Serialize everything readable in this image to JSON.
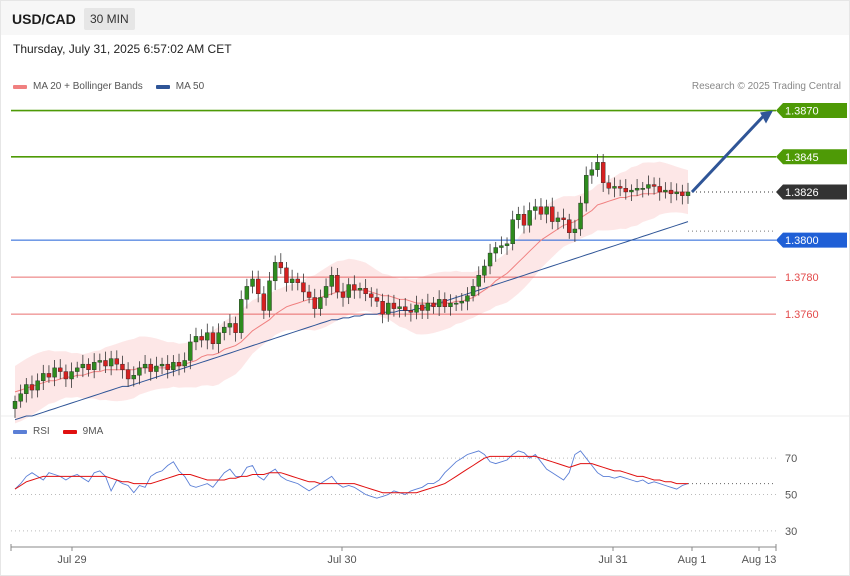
{
  "header": {
    "symbol": "USD/CAD",
    "timeframe": "30 MIN",
    "datetime": "Thursday, July 31, 2025 6:57:02 AM CET"
  },
  "legend": {
    "main": [
      {
        "label": "MA 20 + Bollinger Bands",
        "color": "#f08080"
      },
      {
        "label": "MA 50",
        "color": "#2f5597"
      }
    ],
    "rsi": [
      {
        "label": "RSI",
        "color": "#5b7fd6"
      },
      {
        "label": "9MA",
        "color": "#e01010"
      }
    ],
    "credit": "Research © 2025 Trading Central"
  },
  "chart_data": [
    {
      "type": "candlestick",
      "title": "USD/CAD",
      "timeframe": "30 MIN",
      "x_tick_labels": [
        "Jul 29",
        "Jul 30",
        "Jul 31",
        "Aug 1",
        "Aug 13"
      ],
      "levels": [
        {
          "value": 1.387,
          "label": "1.3870",
          "kind": "target",
          "color": "#4e9a06"
        },
        {
          "value": 1.3845,
          "label": "1.3845",
          "kind": "resistance",
          "color": "#4e9a06"
        },
        {
          "value": 1.3826,
          "label": "1.3826",
          "kind": "last-price",
          "color": "#333333"
        },
        {
          "value": 1.38,
          "label": "1.3800",
          "kind": "pivot",
          "color": "#1f5fd6"
        },
        {
          "value": 1.378,
          "label": "1.3780",
          "kind": "support",
          "color": "#e34b4b"
        },
        {
          "value": 1.376,
          "label": "1.3760",
          "kind": "support",
          "color": "#e34b4b"
        }
      ],
      "ylim": [
        1.3705,
        1.388
      ],
      "series_close": [
        1.3713,
        1.3717,
        1.3722,
        1.3719,
        1.3724,
        1.3728,
        1.3726,
        1.3731,
        1.3729,
        1.3725,
        1.3729,
        1.3731,
        1.3733,
        1.373,
        1.3734,
        1.3735,
        1.3732,
        1.3736,
        1.3733,
        1.373,
        1.3725,
        1.3727,
        1.3731,
        1.3733,
        1.3729,
        1.3732,
        1.3733,
        1.373,
        1.3734,
        1.3732,
        1.3735,
        1.3745,
        1.3748,
        1.3746,
        1.375,
        1.3744,
        1.375,
        1.3753,
        1.3755,
        1.375,
        1.3768,
        1.3775,
        1.3779,
        1.3771,
        1.3762,
        1.3778,
        1.3788,
        1.3785,
        1.3777,
        1.3779,
        1.3777,
        1.3772,
        1.3769,
        1.3763,
        1.3769,
        1.3775,
        1.3781,
        1.3772,
        1.3769,
        1.3776,
        1.3773,
        1.3774,
        1.3771,
        1.3769,
        1.3767,
        1.376,
        1.3766,
        1.3763,
        1.3764,
        1.3762,
        1.3761,
        1.3765,
        1.3762,
        1.3766,
        1.3764,
        1.3768,
        1.3764,
        1.3766,
        1.3766,
        1.3767,
        1.377,
        1.3775,
        1.3781,
        1.3786,
        1.3793,
        1.3796,
        1.3797,
        1.3798,
        1.3811,
        1.3814,
        1.3808,
        1.3816,
        1.3818,
        1.3814,
        1.3818,
        1.381,
        1.3812,
        1.3811,
        1.3804,
        1.3806,
        1.382,
        1.3835,
        1.3838,
        1.3842,
        1.3831,
        1.3828,
        1.3829,
        1.3828,
        1.3826,
        1.3827,
        1.3828,
        1.3828,
        1.383,
        1.3829,
        1.3826,
        1.3827,
        1.3825,
        1.3826,
        1.3824,
        1.3826
      ],
      "series_ma20": [
        1.3718,
        1.3719,
        1.372,
        1.3721,
        1.3722,
        1.3723,
        1.3724,
        1.3724,
        1.3725,
        1.3726,
        1.3726,
        1.3727,
        1.3727,
        1.3728,
        1.3729,
        1.3729,
        1.373,
        1.373,
        1.373,
        1.373,
        1.373,
        1.373,
        1.3731,
        1.3731,
        1.3731,
        1.3731,
        1.3731,
        1.3731,
        1.3732,
        1.3732,
        1.3733,
        1.3734,
        1.3735,
        1.3737,
        1.3738,
        1.3738,
        1.3739,
        1.3741,
        1.3742,
        1.3743,
        1.3745,
        1.3748,
        1.3751,
        1.3753,
        1.3755,
        1.3757,
        1.376,
        1.3762,
        1.3764,
        1.3765,
        1.3766,
        1.3767,
        1.3768,
        1.3768,
        1.3769,
        1.377,
        1.3771,
        1.3772,
        1.3772,
        1.3773,
        1.3773,
        1.3773,
        1.3773,
        1.3772,
        1.3771,
        1.377,
        1.377,
        1.3769,
        1.3768,
        1.3768,
        1.3767,
        1.3766,
        1.3766,
        1.3766,
        1.3766,
        1.3766,
        1.3766,
        1.3766,
        1.3767,
        1.3767,
        1.3768,
        1.3769,
        1.3771,
        1.3773,
        1.3775,
        1.3778,
        1.378,
        1.3782,
        1.3785,
        1.3788,
        1.3791,
        1.3794,
        1.3797,
        1.38,
        1.3802,
        1.3804,
        1.3806,
        1.3808,
        1.3809,
        1.381,
        1.3812,
        1.3814,
        1.3816,
        1.3819,
        1.382,
        1.3821,
        1.3822,
        1.3823,
        1.3823,
        1.3824,
        1.3824,
        1.3825,
        1.3825,
        1.3825,
        1.3826,
        1.3826,
        1.3826,
        1.3826,
        1.3826,
        1.3826
      ],
      "series_ma50": [
        1.3703,
        1.3704,
        1.3705,
        1.3705,
        1.3706,
        1.3707,
        1.3708,
        1.3709,
        1.371,
        1.3711,
        1.3712,
        1.3713,
        1.3714,
        1.3715,
        1.3716,
        1.3717,
        1.3718,
        1.3719,
        1.372,
        1.3721,
        1.3721,
        1.3722,
        1.3723,
        1.3724,
        1.3725,
        1.3726,
        1.3727,
        1.3728,
        1.3729,
        1.373,
        1.3731,
        1.3732,
        1.3733,
        1.3734,
        1.3735,
        1.3736,
        1.3737,
        1.3738,
        1.3739,
        1.374,
        1.3741,
        1.3742,
        1.3743,
        1.3744,
        1.3745,
        1.3746,
        1.3747,
        1.3748,
        1.3749,
        1.375,
        1.3751,
        1.3752,
        1.3753,
        1.3754,
        1.3755,
        1.3756,
        1.3757,
        1.3757,
        1.3758,
        1.3758,
        1.3759,
        1.3759,
        1.376,
        1.376,
        1.376,
        1.3761,
        1.3761,
        1.3761,
        1.3762,
        1.3762,
        1.3762,
        1.3763,
        1.3763,
        1.3764,
        1.3765,
        1.3766,
        1.3767,
        1.3768,
        1.3769,
        1.377,
        1.3771,
        1.3772,
        1.3773,
        1.3774,
        1.3775,
        1.3776,
        1.3777,
        1.3778,
        1.3779,
        1.378,
        1.3781,
        1.3782,
        1.3783,
        1.3784,
        1.3785,
        1.3786,
        1.3787,
        1.3788,
        1.3789,
        1.379,
        1.3791,
        1.3792,
        1.3793,
        1.3794,
        1.3795,
        1.3796,
        1.3797,
        1.3798,
        1.3799,
        1.38,
        1.3801,
        1.3802,
        1.3803,
        1.3804,
        1.3805,
        1.3806,
        1.3807,
        1.3808,
        1.3809,
        1.381
      ],
      "bollinger_halfwidth": 0.0014
    },
    {
      "type": "line",
      "title": "RSI",
      "y_tick_labels": [
        "70",
        "50",
        "30"
      ],
      "ylim": [
        25,
        80
      ],
      "series": [
        {
          "name": "RSI",
          "values": [
            53,
            56,
            60,
            62,
            60,
            58,
            62,
            61,
            60,
            58,
            60,
            61,
            59,
            57,
            62,
            63,
            60,
            52,
            58,
            56,
            55,
            51,
            55,
            54,
            60,
            62,
            63,
            66,
            68,
            63,
            60,
            55,
            54,
            55,
            56,
            54,
            58,
            62,
            64,
            60,
            60,
            65,
            66,
            60,
            58,
            62,
            64,
            60,
            58,
            57,
            56,
            54,
            52,
            54,
            56,
            58,
            60,
            56,
            54,
            55,
            54,
            52,
            50,
            49,
            48,
            49,
            50,
            52,
            51,
            50,
            52,
            53,
            54,
            56,
            56,
            58,
            62,
            65,
            68,
            70,
            72,
            73,
            74,
            72,
            68,
            67,
            68,
            69,
            72,
            74,
            73,
            70,
            72,
            68,
            64,
            62,
            60,
            58,
            62,
            72,
            74,
            70,
            66,
            62,
            60,
            60,
            59,
            60,
            59,
            58,
            57,
            58,
            56,
            57,
            56,
            55,
            54,
            53,
            55,
            56
          ]
        },
        {
          "name": "9MA",
          "values": [
            53,
            55,
            57,
            58,
            59,
            60,
            60,
            60,
            60,
            60,
            60,
            60,
            60,
            60,
            60,
            60,
            60,
            59,
            58,
            57,
            57,
            56,
            56,
            56,
            56,
            57,
            58,
            59,
            60,
            61,
            61,
            61,
            60,
            59,
            58,
            58,
            58,
            58,
            59,
            59,
            60,
            60,
            61,
            61,
            61,
            62,
            62,
            62,
            61,
            60,
            59,
            58,
            57,
            57,
            56,
            56,
            56,
            56,
            56,
            56,
            56,
            55,
            54,
            53,
            52,
            51,
            51,
            51,
            51,
            51,
            51,
            51,
            52,
            53,
            54,
            55,
            56,
            58,
            60,
            62,
            64,
            66,
            68,
            70,
            71,
            71,
            71,
            71,
            71,
            71,
            71,
            71,
            71,
            70,
            69,
            68,
            67,
            66,
            65,
            66,
            67,
            67,
            67,
            66,
            65,
            64,
            63,
            63,
            62,
            61,
            60,
            60,
            59,
            58,
            58,
            57,
            57,
            56,
            56,
            56
          ]
        }
      ]
    }
  ]
}
